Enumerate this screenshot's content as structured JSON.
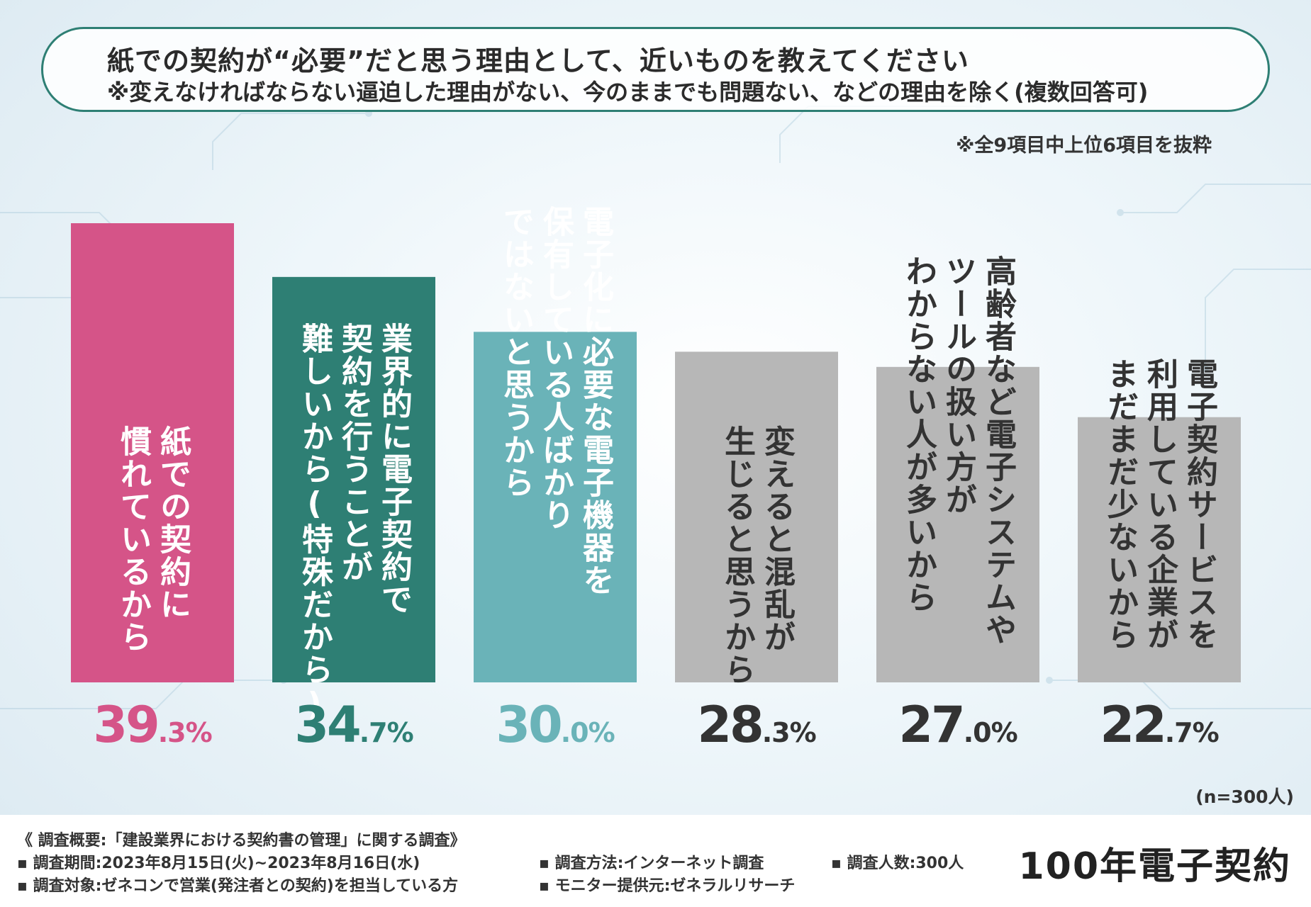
{
  "title": {
    "line1": "紙での契約が“必要”だと思う理由として、近いものを教えてください",
    "line2": "※変えなければならない逼迫した理由がない、今のままでも問題ない、などの理由を除く(複数回答可)"
  },
  "excerpt_note": "※全9項目中上位6項目を抜粋",
  "chart_data": {
    "type": "bar",
    "categories": [
      "紙での契約に慣れているから",
      "業界的に電子契約で契約を行うことが難しいから(特殊だから)",
      "電子化に必要な電子機器を保有している人ばかりではないと思うから",
      "変えると混乱が生じると思うから",
      "高齢者など電子システムやツールの扱い方がわからない人が多いから",
      "電子契約サービスを利用している企業がまだまだ少ないから"
    ],
    "label_lines": [
      [
        "紙での契約に",
        "慣れているから"
      ],
      [
        "業界的に電子契約で",
        "契約を行うことが",
        "難しいから(特殊だから)"
      ],
      [
        "電子化に必要な電子機器を",
        "保有している人ばかり",
        "ではないと思うから"
      ],
      [
        "変えると混乱が",
        "生じると思うから"
      ],
      [
        "高齢者など電子システムや",
        "ツールの扱い方が",
        "わからない人が多いから"
      ],
      [
        "電子契約サービスを",
        "利用している企業が",
        "まだまだ少ないから"
      ]
    ],
    "values": [
      39.3,
      34.7,
      30.0,
      28.3,
      27.0,
      22.7
    ],
    "value_labels": [
      {
        "int": "39",
        "dec": ".3%"
      },
      {
        "int": "34",
        "dec": ".7%"
      },
      {
        "int": "30",
        "dec": ".0%"
      },
      {
        "int": "28",
        "dec": ".3%"
      },
      {
        "int": "27",
        "dec": ".0%"
      },
      {
        "int": "22",
        "dec": ".7%"
      }
    ],
    "colors": [
      "#d55488",
      "#2e7f74",
      "#6ab3b8",
      "#b7b7b7",
      "#b7b7b7",
      "#b7b7b7"
    ],
    "value_colors": [
      "#d55488",
      "#2e7f74",
      "#6ab3b8",
      "#333333",
      "#333333",
      "#333333"
    ],
    "ylim": [
      0,
      39.3
    ],
    "unit": "%"
  },
  "n_note": "(n=300人)",
  "footer": {
    "overview": "《 調査概要:「建設業界における契約書の管理」に関する調査》",
    "period": "▪ 調査期間:2023年8月15日(火)~2023年8月16日(水)",
    "target": "▪ 調査対象:ゼネコンで営業(発注者との契約)を担当している方",
    "method": "▪ 調査方法:インターネット調査",
    "provider": "▪ モニター提供元:ゼネラルリサーチ",
    "count": "▪ 調査人数:300人",
    "logo": "100年電子契約"
  }
}
